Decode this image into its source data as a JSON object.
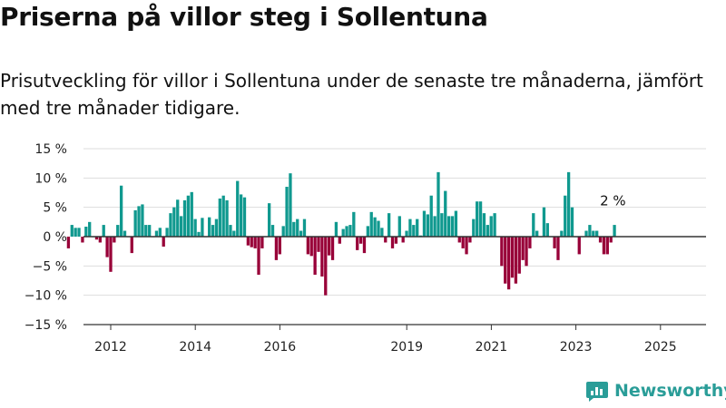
{
  "title": "Priserna på villor steg i Sollentuna",
  "subtitle": "Prisutveckling för villor i Sollentuna under de senaste tre månaderna, jämfört med tre månader tidigare.",
  "brand": {
    "name": "Newsworthy",
    "icon": "bar-chart-logo-icon",
    "color": "#2a9d98"
  },
  "colors": {
    "positive": "#10998f",
    "negative": "#980038",
    "grid": "#dddddd",
    "axis": "#333333"
  },
  "chart_data": {
    "type": "bar",
    "ylim": [
      -15,
      15
    ],
    "y_ticks": [
      "15 %",
      "10 %",
      "5 %",
      "0 %",
      "−5 %",
      "−10 %",
      "−15 %"
    ],
    "y_tick_values": [
      15,
      10,
      5,
      0,
      -5,
      -10,
      -15
    ],
    "x_tick_labels": [
      "2012",
      "2014",
      "2016",
      "2019",
      "2021",
      "2023",
      "2025"
    ],
    "x_tick_values": [
      2012,
      2014,
      2016,
      2019,
      2021,
      2023,
      2025
    ],
    "x_start": 2011.0,
    "month_step": 0.0833,
    "grid": true,
    "annotation": "2 %",
    "values": [
      -2,
      2,
      1.5,
      1.5,
      -1,
      1.7,
      2.5,
      0,
      -0.5,
      -1,
      2,
      -3.5,
      -6,
      -1,
      2,
      8.7,
      1,
      0,
      -2.8,
      4.5,
      5.2,
      5.5,
      2,
      2,
      0,
      1,
      1.5,
      -1.7,
      1.5,
      4,
      5,
      6.3,
      3.5,
      6.2,
      7,
      7.6,
      3,
      0.8,
      3.2,
      0,
      3.3,
      2,
      3,
      6.5,
      7,
      6.2,
      2,
      1,
      9.5,
      7.2,
      6.7,
      -1.5,
      -1.8,
      -2,
      -6.5,
      -2,
      0,
      5.7,
      2,
      -4,
      -3,
      1.8,
      8.5,
      10.8,
      2.5,
      3,
      1,
      3,
      -3,
      -3.3,
      -6.5,
      -2.6,
      -6.8,
      -10,
      -3.2,
      -4,
      2.5,
      -1.2,
      1.3,
      1.8,
      2,
      4.2,
      -2.3,
      -1.2,
      -2.8,
      1.8,
      4.2,
      3.3,
      2.7,
      1.5,
      -1,
      4,
      -2,
      -1.2,
      3.5,
      -1,
      1,
      3,
      2,
      3,
      0.2,
      4.4,
      3.8,
      7,
      3.5,
      11,
      4,
      7.8,
      3.5,
      3.5,
      4.4,
      -1,
      -2,
      -3,
      -1,
      3,
      6,
      6,
      4,
      2,
      3.5,
      4,
      0,
      -5,
      -8,
      -9,
      -7,
      -8,
      -6.3,
      -4,
      -5,
      -2,
      4,
      1,
      0,
      5,
      2.3,
      0,
      -2,
      -4,
      1,
      7,
      11,
      5,
      0,
      -3,
      0,
      1,
      2,
      1,
      1,
      -1,
      -3,
      -3,
      -1,
      2
    ]
  }
}
